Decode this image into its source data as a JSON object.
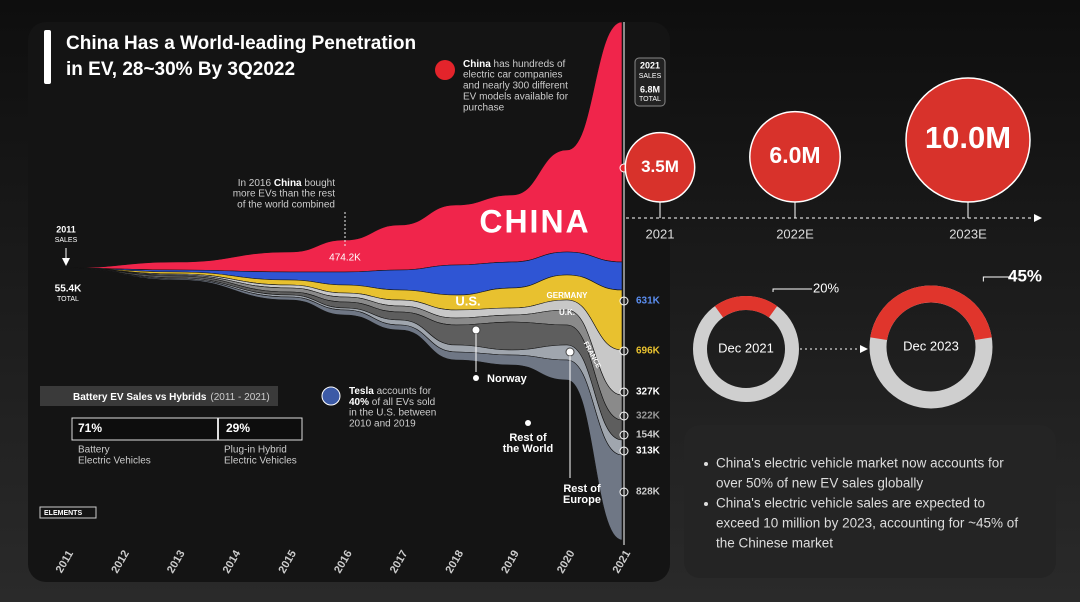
{
  "title": [
    "China Has a World-leading Penetration",
    "in EV, 28~30% By 3Q2022"
  ],
  "stream": {
    "start_label": [
      "2011",
      "SALES"
    ],
    "start_total": [
      "55.4K",
      "TOTAL"
    ],
    "badge": [
      "2021",
      "SALES",
      "6.8M",
      "TOTAL"
    ],
    "china_note": [
      "China",
      " has hundreds of",
      "electric car companies",
      "and nearly 300 different",
      "EV models available for",
      "purchase"
    ],
    "note_2016": [
      "In 2016 ",
      "China",
      " bought",
      "more EVs than the rest",
      "of the world combined"
    ],
    "marker_2016": "474.2K",
    "regions": {
      "china": "CHINA",
      "us": "U.S.",
      "germany": "GERMANY",
      "uk": "U.K.",
      "france": "FRANCE",
      "norway": "Norway",
      "rest_world": [
        "Rest of",
        "the World"
      ],
      "rest_europe": [
        "Rest of",
        "Europe"
      ]
    },
    "end_values": [
      "631K",
      "696K",
      "327K",
      "322K",
      "154K",
      "313K",
      "828K"
    ],
    "tesla_note": [
      "Tesla",
      " accounts for",
      "40%",
      " of all EVs sold",
      "in the U.S. between",
      "2010 and 2019"
    ],
    "years": [
      "2011",
      "2012",
      "2013",
      "2014",
      "2015",
      "2016",
      "2017",
      "2018",
      "2019",
      "2020",
      "2021"
    ]
  },
  "split": {
    "title": "Battery EV Sales vs Hybrids",
    "period": "(2011 - 2021)",
    "battery": {
      "share": "71%",
      "label": [
        "Battery",
        "Electric Vehicles"
      ]
    },
    "hybrid": {
      "share": "29%",
      "label": [
        "Plug-in Hybrid",
        "Electric Vehicles"
      ]
    }
  },
  "logo": "ELEMENTS",
  "forecast": [
    {
      "value": 3.5,
      "label": "3.5M",
      "year": "2021"
    },
    {
      "value": 6.0,
      "label": "6.0M",
      "year": "2022E"
    },
    {
      "value": 10.0,
      "label": "10.0M",
      "year": "2023E"
    }
  ],
  "donuts": [
    {
      "label": "Dec 2021",
      "value": 20,
      "value_label": "20%"
    },
    {
      "label": "Dec 2023",
      "value": 45,
      "value_label": "45%"
    }
  ],
  "bullets": [
    [
      "China's electric vehicle market now accounts for",
      "over 50% of new EV sales globally"
    ],
    [
      "China's electric vehicle sales are expected to",
      "exceed 10 million by 2023, accounting for ~45% of",
      "the Chinese market"
    ]
  ]
}
